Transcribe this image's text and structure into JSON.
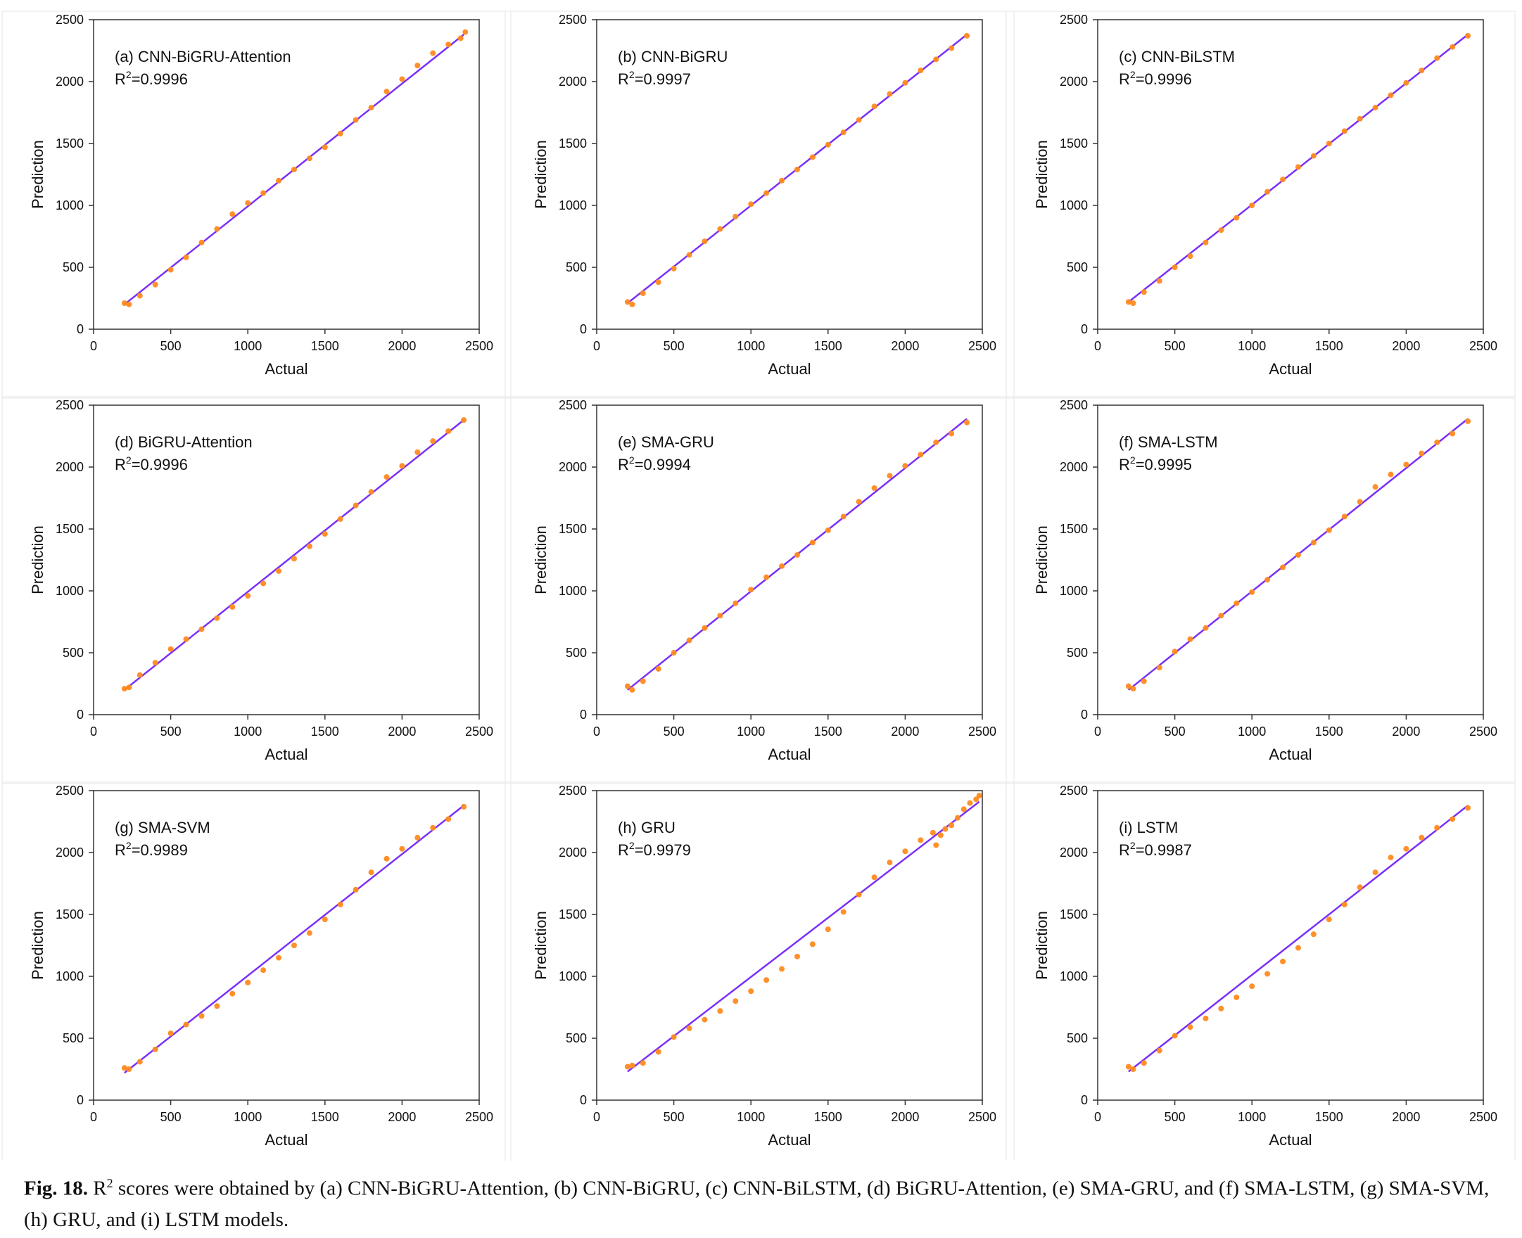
{
  "figure": {
    "colors": {
      "line": "#7b2ff7",
      "points": "#ff8a1f",
      "axis": "#333333",
      "text": "#111111"
    },
    "caption": {
      "label": "Fig. 18.",
      "r_prefix": "R",
      "r_sup": "2",
      "text": " scores were obtained by (a) CNN-BiGRU-Attention, (b) CNN-BiGRU, (c) CNN-BiLSTM, (d) BiGRU-Attention, (e) SMA-GRU, and (f) SMA-LSTM, (g) SMA-SVM, (h) GRU, and (i) LSTM models."
    }
  },
  "chart_data": [
    {
      "type": "scatter",
      "title": "(a) CNN-BiGRU-Attention",
      "r2_label": "R",
      "r2_value": "=0.9996",
      "xlabel": "Actual",
      "ylabel": "Prediction",
      "xlim": [
        0,
        2500
      ],
      "ylim": [
        0,
        2500
      ],
      "xticks": [
        0,
        500,
        1000,
        1500,
        2000,
        2500
      ],
      "yticks": [
        0,
        500,
        1000,
        1500,
        2000,
        2500
      ],
      "fit_line": {
        "x": [
          200,
          2400
        ],
        "y": [
          200,
          2380
        ]
      },
      "points": {
        "x": [
          200,
          230,
          300,
          400,
          500,
          600,
          700,
          800,
          900,
          1000,
          1100,
          1200,
          1300,
          1400,
          1500,
          1600,
          1700,
          1800,
          1900,
          2000,
          2100,
          2200,
          2300,
          2380,
          2410
        ],
        "y": [
          210,
          200,
          270,
          360,
          480,
          580,
          700,
          810,
          930,
          1020,
          1100,
          1200,
          1290,
          1380,
          1470,
          1580,
          1690,
          1790,
          1920,
          2020,
          2130,
          2230,
          2300,
          2350,
          2400
        ]
      }
    },
    {
      "type": "scatter",
      "title": "(b) CNN-BiGRU",
      "r2_label": "R",
      "r2_value": "=0.9997",
      "xlabel": "Actual",
      "ylabel": "Prediction",
      "xlim": [
        0,
        2500
      ],
      "ylim": [
        0,
        2500
      ],
      "xticks": [
        0,
        500,
        1000,
        1500,
        2000,
        2500
      ],
      "yticks": [
        0,
        500,
        1000,
        1500,
        2000,
        2500
      ],
      "fit_line": {
        "x": [
          200,
          2400
        ],
        "y": [
          210,
          2380
        ]
      },
      "points": {
        "x": [
          200,
          230,
          300,
          400,
          500,
          600,
          700,
          800,
          900,
          1000,
          1100,
          1200,
          1300,
          1400,
          1500,
          1600,
          1700,
          1800,
          1900,
          2000,
          2100,
          2200,
          2300,
          2400
        ],
        "y": [
          220,
          200,
          290,
          380,
          490,
          600,
          710,
          810,
          910,
          1010,
          1100,
          1200,
          1290,
          1390,
          1490,
          1590,
          1690,
          1800,
          1900,
          1990,
          2090,
          2180,
          2270,
          2370
        ]
      }
    },
    {
      "type": "scatter",
      "title": "(c) CNN-BiLSTM",
      "r2_label": "R",
      "r2_value": "=0.9996",
      "xlabel": "Actual",
      "ylabel": "Prediction",
      "xlim": [
        0,
        2500
      ],
      "ylim": [
        0,
        2500
      ],
      "xticks": [
        0,
        500,
        1000,
        1500,
        2000,
        2500
      ],
      "yticks": [
        0,
        500,
        1000,
        1500,
        2000,
        2500
      ],
      "fit_line": {
        "x": [
          200,
          2400
        ],
        "y": [
          220,
          2380
        ]
      },
      "points": {
        "x": [
          200,
          230,
          300,
          400,
          500,
          600,
          700,
          800,
          900,
          1000,
          1100,
          1200,
          1300,
          1400,
          1500,
          1600,
          1700,
          1800,
          1900,
          2000,
          2100,
          2200,
          2300,
          2400
        ],
        "y": [
          220,
          210,
          300,
          390,
          500,
          590,
          700,
          800,
          900,
          1000,
          1110,
          1210,
          1310,
          1400,
          1500,
          1600,
          1700,
          1790,
          1890,
          1990,
          2090,
          2190,
          2280,
          2370
        ]
      }
    },
    {
      "type": "scatter",
      "title": "(d) BiGRU-Attention",
      "r2_label": "R",
      "r2_value": "=0.9996",
      "xlabel": "Actual",
      "ylabel": "Prediction",
      "xlim": [
        0,
        2500
      ],
      "ylim": [
        0,
        2500
      ],
      "xticks": [
        0,
        500,
        1000,
        1500,
        2000,
        2500
      ],
      "yticks": [
        0,
        500,
        1000,
        1500,
        2000,
        2500
      ],
      "fit_line": {
        "x": [
          200,
          2400
        ],
        "y": [
          200,
          2380
        ]
      },
      "points": {
        "x": [
          200,
          230,
          300,
          400,
          500,
          600,
          700,
          800,
          900,
          1000,
          1100,
          1200,
          1300,
          1400,
          1500,
          1600,
          1700,
          1800,
          1900,
          2000,
          2100,
          2200,
          2300,
          2400
        ],
        "y": [
          210,
          220,
          320,
          420,
          530,
          610,
          690,
          780,
          870,
          960,
          1060,
          1160,
          1260,
          1360,
          1460,
          1580,
          1690,
          1800,
          1920,
          2010,
          2120,
          2210,
          2290,
          2380
        ]
      }
    },
    {
      "type": "scatter",
      "title": "(e) SMA-GRU",
      "r2_label": "R",
      "r2_value": "=0.9994",
      "xlabel": "Actual",
      "ylabel": "Prediction",
      "xlim": [
        0,
        2500
      ],
      "ylim": [
        0,
        2500
      ],
      "xticks": [
        0,
        500,
        1000,
        1500,
        2000,
        2500
      ],
      "yticks": [
        0,
        500,
        1000,
        1500,
        2000,
        2500
      ],
      "fit_line": {
        "x": [
          200,
          2400
        ],
        "y": [
          200,
          2390
        ]
      },
      "points": {
        "x": [
          200,
          230,
          300,
          400,
          500,
          600,
          700,
          800,
          900,
          1000,
          1100,
          1200,
          1300,
          1400,
          1500,
          1600,
          1700,
          1800,
          1900,
          2000,
          2100,
          2200,
          2300,
          2400
        ],
        "y": [
          230,
          200,
          270,
          370,
          500,
          600,
          700,
          800,
          900,
          1010,
          1110,
          1200,
          1290,
          1390,
          1490,
          1600,
          1720,
          1830,
          1930,
          2010,
          2100,
          2200,
          2270,
          2360
        ]
      }
    },
    {
      "type": "scatter",
      "title": "(f) SMA-LSTM",
      "r2_label": "R",
      "r2_value": "=0.9995",
      "xlabel": "Actual",
      "ylabel": "Prediction",
      "xlim": [
        0,
        2500
      ],
      "ylim": [
        0,
        2500
      ],
      "xticks": [
        0,
        500,
        1000,
        1500,
        2000,
        2500
      ],
      "yticks": [
        0,
        500,
        1000,
        1500,
        2000,
        2500
      ],
      "fit_line": {
        "x": [
          200,
          2400
        ],
        "y": [
          200,
          2390
        ]
      },
      "points": {
        "x": [
          200,
          230,
          300,
          400,
          500,
          600,
          700,
          800,
          900,
          1000,
          1100,
          1200,
          1300,
          1400,
          1500,
          1600,
          1700,
          1800,
          1900,
          2000,
          2100,
          2200,
          2300,
          2400
        ],
        "y": [
          230,
          210,
          270,
          380,
          510,
          610,
          700,
          800,
          900,
          990,
          1090,
          1190,
          1290,
          1390,
          1490,
          1600,
          1720,
          1840,
          1940,
          2020,
          2110,
          2200,
          2270,
          2370
        ]
      }
    },
    {
      "type": "scatter",
      "title": "(g) SMA-SVM",
      "r2_label": "R",
      "r2_value": "=0.9989",
      "xlabel": "Actual",
      "ylabel": "Prediction",
      "xlim": [
        0,
        2500
      ],
      "ylim": [
        0,
        2500
      ],
      "xticks": [
        0,
        500,
        1000,
        1500,
        2000,
        2500
      ],
      "yticks": [
        0,
        500,
        1000,
        1500,
        2000,
        2500
      ],
      "fit_line": {
        "x": [
          200,
          2400
        ],
        "y": [
          220,
          2380
        ]
      },
      "points": {
        "x": [
          200,
          230,
          300,
          400,
          500,
          600,
          700,
          800,
          900,
          1000,
          1100,
          1200,
          1300,
          1400,
          1500,
          1600,
          1700,
          1800,
          1900,
          2000,
          2100,
          2200,
          2300,
          2400
        ],
        "y": [
          260,
          250,
          310,
          410,
          540,
          610,
          680,
          760,
          860,
          950,
          1050,
          1150,
          1250,
          1350,
          1460,
          1580,
          1700,
          1840,
          1950,
          2030,
          2120,
          2200,
          2270,
          2370
        ]
      }
    },
    {
      "type": "scatter",
      "title": "(h) GRU",
      "r2_label": "R",
      "r2_value": "=0.9979",
      "xlabel": "Actual",
      "ylabel": "Prediction",
      "xlim": [
        0,
        2500
      ],
      "ylim": [
        0,
        2500
      ],
      "xticks": [
        0,
        500,
        1000,
        1500,
        2000,
        2500
      ],
      "yticks": [
        0,
        500,
        1000,
        1500,
        2000,
        2500
      ],
      "fit_line": {
        "x": [
          200,
          2480
        ],
        "y": [
          230,
          2410
        ]
      },
      "points": {
        "x": [
          200,
          230,
          300,
          400,
          500,
          600,
          700,
          800,
          900,
          1000,
          1100,
          1200,
          1300,
          1400,
          1500,
          1600,
          1700,
          1800,
          1900,
          2000,
          2100,
          2180,
          2200,
          2230,
          2260,
          2300,
          2340,
          2380,
          2420,
          2460,
          2480
        ],
        "y": [
          270,
          280,
          300,
          390,
          510,
          580,
          650,
          720,
          800,
          880,
          970,
          1060,
          1160,
          1260,
          1380,
          1520,
          1660,
          1800,
          1920,
          2010,
          2100,
          2160,
          2060,
          2140,
          2190,
          2220,
          2280,
          2350,
          2400,
          2430,
          2460
        ]
      }
    },
    {
      "type": "scatter",
      "title": "(i) LSTM",
      "r2_label": "R",
      "r2_value": "=0.9987",
      "xlabel": "Actual",
      "ylabel": "Prediction",
      "xlim": [
        0,
        2500
      ],
      "ylim": [
        0,
        2500
      ],
      "xticks": [
        0,
        500,
        1000,
        1500,
        2000,
        2500
      ],
      "yticks": [
        0,
        500,
        1000,
        1500,
        2000,
        2500
      ],
      "fit_line": {
        "x": [
          200,
          2400
        ],
        "y": [
          230,
          2380
        ]
      },
      "points": {
        "x": [
          200,
          230,
          300,
          400,
          500,
          600,
          700,
          800,
          900,
          1000,
          1100,
          1200,
          1300,
          1400,
          1500,
          1600,
          1700,
          1800,
          1900,
          2000,
          2100,
          2200,
          2300,
          2400
        ],
        "y": [
          270,
          250,
          300,
          400,
          520,
          590,
          660,
          740,
          830,
          920,
          1020,
          1120,
          1230,
          1340,
          1460,
          1580,
          1720,
          1840,
          1960,
          2030,
          2120,
          2200,
          2270,
          2360
        ]
      }
    }
  ]
}
